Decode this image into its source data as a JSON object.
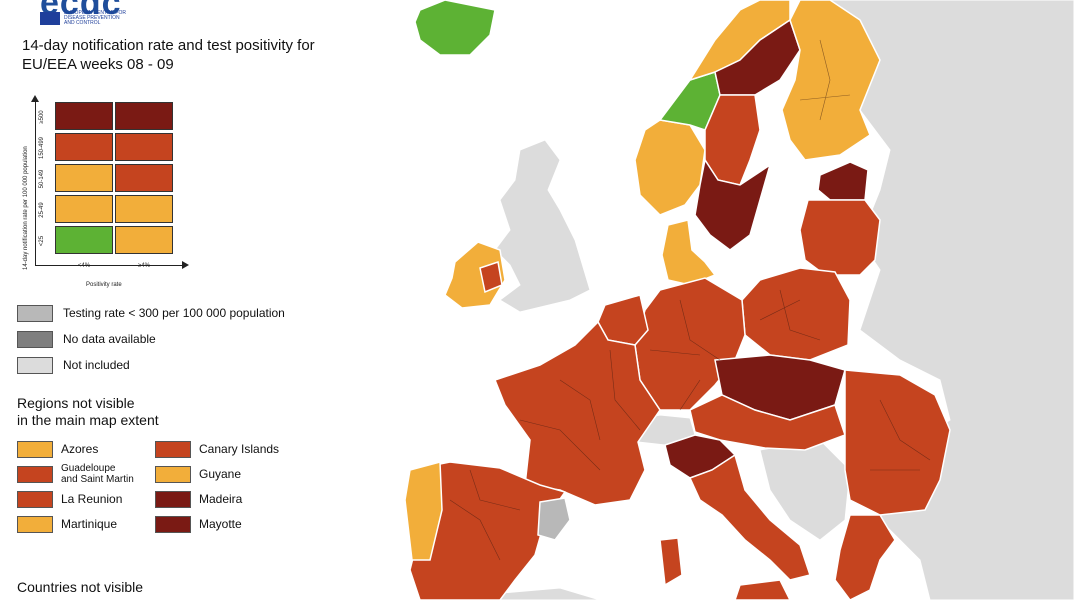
{
  "colors": {
    "sea": "#ffffff",
    "not_included": "#dcdcdc",
    "green": "#5db234",
    "orange": "#f2ae3a",
    "red": "#c5441f",
    "dark_red": "#7a1a14",
    "testing_low": "#b8b8b8",
    "no_data": "#7f7f7f",
    "border": "#3a1a10"
  },
  "logo": {
    "wordmark": "ecdc",
    "agency": "EUROPEAN CENTRE FOR\nDISEASE PREVENTION\nAND CONTROL"
  },
  "title": "14-day notification rate and test positivity for EU/EEA weeks 08 - 09",
  "matrix": {
    "y_axis_label": "14-day notification rate per 100 000 population",
    "x_axis_label": "Positivity rate",
    "row_labels": [
      "≥500",
      "150-499",
      "50-149",
      "25-49",
      "<25"
    ],
    "col_labels": [
      "<4%",
      "≥4%"
    ],
    "cells": [
      [
        "dark_red",
        "dark_red"
      ],
      [
        "red",
        "red"
      ],
      [
        "orange",
        "red"
      ],
      [
        "orange",
        "orange"
      ],
      [
        "green",
        "orange"
      ]
    ]
  },
  "key": [
    {
      "label": "Testing rate < 300 per 100 000 population",
      "color": "testing_low"
    },
    {
      "label": "No data available",
      "color": "no_data"
    },
    {
      "label": "Not included",
      "color": "not_included"
    }
  ],
  "regions_title": "Regions not visible\nin the main map extent",
  "regions": [
    {
      "label": "Azores",
      "color": "orange"
    },
    {
      "label": "Guadeloupe\nand Saint Martin",
      "color": "red"
    },
    {
      "label": "La Reunion",
      "color": "red"
    },
    {
      "label": "Martinique",
      "color": "orange"
    },
    {
      "label": "Canary Islands",
      "color": "red"
    },
    {
      "label": "Guyane",
      "color": "orange"
    },
    {
      "label": "Madeira",
      "color": "dark_red"
    },
    {
      "label": "Mayotte",
      "color": "dark_red"
    }
  ],
  "countries_title": "Countries not visible",
  "map_regions": [
    {
      "name": "iceland",
      "status": "green"
    },
    {
      "name": "norway-south-west",
      "status": "orange"
    },
    {
      "name": "norway-central",
      "status": "green"
    },
    {
      "name": "norway-north",
      "status": "orange"
    },
    {
      "name": "sweden-north",
      "status": "dark_red"
    },
    {
      "name": "sweden-central",
      "status": "red"
    },
    {
      "name": "sweden-south",
      "status": "dark_red"
    },
    {
      "name": "finland",
      "status": "orange"
    },
    {
      "name": "estonia",
      "status": "dark_red"
    },
    {
      "name": "latvia-lithuania",
      "status": "red"
    },
    {
      "name": "denmark",
      "status": "orange"
    },
    {
      "name": "ireland",
      "status": "orange"
    },
    {
      "name": "ireland-dublin",
      "status": "red"
    },
    {
      "name": "poland",
      "status": "red"
    },
    {
      "name": "germany",
      "status": "red"
    },
    {
      "name": "benelux",
      "status": "red"
    },
    {
      "name": "france",
      "status": "red"
    },
    {
      "name": "czechia-slovakia",
      "status": "dark_red"
    },
    {
      "name": "austria-hungary",
      "status": "red"
    },
    {
      "name": "romania-bulgaria",
      "status": "red"
    },
    {
      "name": "italy-north",
      "status": "dark_red"
    },
    {
      "name": "italy",
      "status": "red"
    },
    {
      "name": "iberia",
      "status": "red"
    },
    {
      "name": "portugal-north",
      "status": "orange"
    },
    {
      "name": "catalonia",
      "status": "testing_low"
    },
    {
      "name": "greece",
      "status": "red"
    },
    {
      "name": "switzerland",
      "status": "not_included"
    },
    {
      "name": "uk",
      "status": "not_included"
    }
  ]
}
